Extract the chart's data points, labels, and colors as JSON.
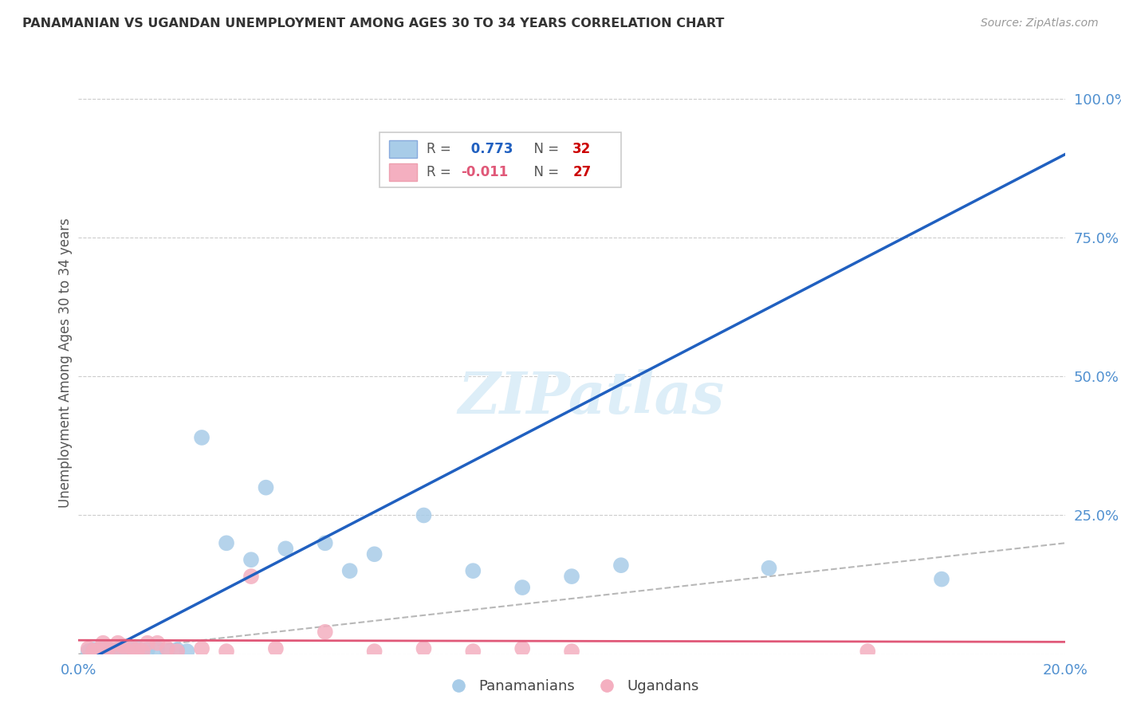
{
  "title": "PANAMANIAN VS UGANDAN UNEMPLOYMENT AMONG AGES 30 TO 34 YEARS CORRELATION CHART",
  "source": "Source: ZipAtlas.com",
  "ylabel": "Unemployment Among Ages 30 to 34 years",
  "xlim": [
    0.0,
    0.2
  ],
  "ylim": [
    0.0,
    1.05
  ],
  "panama_R": 0.773,
  "panama_N": 32,
  "uganda_R": -0.011,
  "uganda_N": 27,
  "panama_color": "#a8cce8",
  "uganda_color": "#f4afc0",
  "panama_line_color": "#2060c0",
  "uganda_line_color": "#e05878",
  "ref_line_color": "#b8b8b8",
  "watermark_color": "#ddeef8",
  "background_color": "#ffffff",
  "panama_x": [
    0.002,
    0.003,
    0.004,
    0.005,
    0.006,
    0.007,
    0.008,
    0.009,
    0.01,
    0.011,
    0.012,
    0.013,
    0.014,
    0.016,
    0.018,
    0.02,
    0.022,
    0.025,
    0.03,
    0.035,
    0.038,
    0.042,
    0.05,
    0.055,
    0.06,
    0.07,
    0.08,
    0.09,
    0.1,
    0.11,
    0.14,
    0.175
  ],
  "panama_y": [
    0.005,
    0.008,
    0.005,
    0.01,
    0.008,
    0.005,
    0.008,
    0.005,
    0.01,
    0.008,
    0.01,
    0.005,
    0.008,
    0.01,
    0.005,
    0.008,
    0.005,
    0.39,
    0.2,
    0.17,
    0.3,
    0.19,
    0.2,
    0.15,
    0.18,
    0.25,
    0.15,
    0.12,
    0.14,
    0.16,
    0.155,
    0.135
  ],
  "uganda_x": [
    0.002,
    0.003,
    0.004,
    0.005,
    0.006,
    0.007,
    0.008,
    0.009,
    0.01,
    0.011,
    0.012,
    0.013,
    0.014,
    0.016,
    0.018,
    0.02,
    0.025,
    0.03,
    0.035,
    0.04,
    0.05,
    0.06,
    0.07,
    0.08,
    0.09,
    0.1,
    0.16
  ],
  "uganda_y": [
    0.01,
    0.005,
    0.008,
    0.02,
    0.01,
    0.005,
    0.02,
    0.015,
    0.005,
    0.01,
    0.008,
    0.005,
    0.02,
    0.02,
    0.01,
    0.005,
    0.01,
    0.005,
    0.14,
    0.01,
    0.04,
    0.005,
    0.01,
    0.005,
    0.01,
    0.005,
    0.005
  ],
  "blue_line_x": [
    0.0,
    0.2
  ],
  "blue_line_y": [
    -0.02,
    0.9
  ],
  "pink_line_x": [
    0.0,
    0.2
  ],
  "pink_line_y": [
    0.025,
    0.022
  ]
}
